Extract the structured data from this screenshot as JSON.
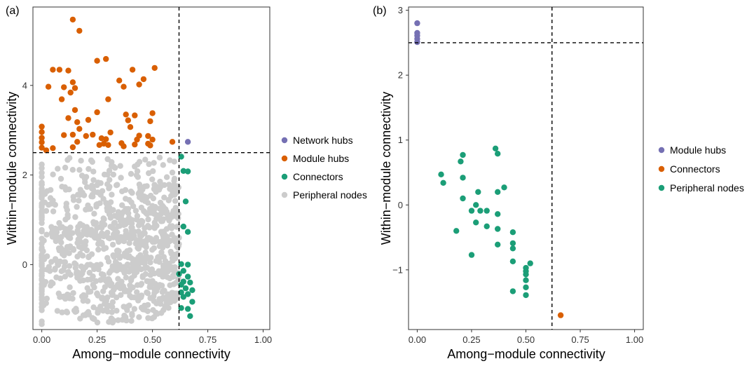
{
  "chart_data": [
    {
      "type": "scatter",
      "panel_label": "(a)",
      "xlabel": "Among−module connectivity",
      "ylabel": "Within−module connectivity",
      "xlim": [
        -0.04,
        1.03
      ],
      "ylim": [
        -1.45,
        5.75
      ],
      "xticks": [
        0,
        0.25,
        0.5,
        0.75,
        1.0
      ],
      "xtick_labels": [
        "0.00",
        "0.25",
        "0.50",
        "0.75",
        "1.00"
      ],
      "yticks": [
        0,
        2,
        4
      ],
      "ytick_labels": [
        "0",
        "2",
        "4"
      ],
      "grid": false,
      "legend_position": "right",
      "thresholds": {
        "x": 0.62,
        "y": 2.5
      },
      "series": [
        {
          "name": "Network hubs",
          "color": "#7570b3",
          "points": [
            [
              0.66,
              2.74
            ]
          ]
        },
        {
          "name": "Module hubs",
          "color": "#d95f02",
          "points": [
            [
              0.14,
              5.47
            ],
            [
              0.17,
              5.22
            ],
            [
              0.25,
              4.55
            ],
            [
              0.29,
              4.59
            ],
            [
              0.05,
              4.35
            ],
            [
              0.08,
              4.35
            ],
            [
              0.12,
              4.33
            ],
            [
              0.51,
              4.39
            ],
            [
              0.35,
              4.11
            ],
            [
              0.41,
              4.35
            ],
            [
              0.46,
              4.14
            ],
            [
              0.03,
              3.97
            ],
            [
              0.1,
              3.96
            ],
            [
              0.14,
              4.07
            ],
            [
              0.09,
              3.69
            ],
            [
              0.13,
              3.84
            ],
            [
              0.15,
              3.94
            ],
            [
              0.3,
              3.69
            ],
            [
              0.37,
              3.97
            ],
            [
              0.44,
              4.02
            ],
            [
              0.15,
              3.45
            ],
            [
              0.25,
              3.4
            ],
            [
              0.38,
              3.35
            ],
            [
              0.42,
              3.33
            ],
            [
              0.5,
              3.38
            ],
            [
              0.12,
              3.27
            ],
            [
              0.16,
              3.18
            ],
            [
              0.21,
              3.23
            ],
            [
              0.39,
              3.22
            ],
            [
              0.49,
              3.2
            ],
            [
              0.4,
              3.07
            ],
            [
              0.17,
              3.03
            ],
            [
              0.1,
              2.89
            ],
            [
              0.14,
              2.9
            ],
            [
              0.2,
              2.87
            ],
            [
              0.23,
              2.9
            ],
            [
              0.27,
              2.82
            ],
            [
              0.29,
              2.8
            ],
            [
              0.31,
              2.95
            ],
            [
              0.44,
              2.88
            ],
            [
              0.48,
              2.87
            ],
            [
              0.0,
              3.08
            ],
            [
              0.0,
              2.96
            ],
            [
              0.0,
              2.83
            ],
            [
              0.0,
              2.73
            ],
            [
              0.0,
              2.61
            ],
            [
              0.02,
              2.55
            ],
            [
              0.05,
              2.6
            ],
            [
              0.14,
              2.62
            ],
            [
              0.16,
              2.74
            ],
            [
              0.26,
              2.67
            ],
            [
              0.28,
              2.7
            ],
            [
              0.3,
              2.67
            ],
            [
              0.36,
              2.71
            ],
            [
              0.37,
              2.64
            ],
            [
              0.42,
              2.68
            ],
            [
              0.43,
              2.79
            ],
            [
              0.48,
              2.7
            ],
            [
              0.49,
              2.66
            ],
            [
              0.5,
              2.79
            ],
            [
              0.59,
              2.74
            ]
          ]
        },
        {
          "name": "Connectors",
          "color": "#1b9e77",
          "points": [
            [
              0.63,
              2.41
            ],
            [
              0.64,
              2.09
            ],
            [
              0.66,
              2.08
            ],
            [
              0.65,
              1.41
            ],
            [
              0.64,
              0.85
            ],
            [
              0.66,
              0.73
            ],
            [
              0.63,
              0.01
            ],
            [
              0.66,
              0.0
            ],
            [
              0.64,
              -0.14
            ],
            [
              0.62,
              -0.21
            ],
            [
              0.66,
              -0.27
            ],
            [
              0.64,
              -0.38
            ],
            [
              0.67,
              -0.4
            ],
            [
              0.63,
              -0.45
            ],
            [
              0.65,
              -0.53
            ],
            [
              0.68,
              -0.57
            ],
            [
              0.63,
              -0.62
            ],
            [
              0.66,
              -0.66
            ],
            [
              0.64,
              -0.72
            ],
            [
              0.68,
              -0.83
            ],
            [
              0.63,
              -0.97
            ],
            [
              0.66,
              -0.99
            ],
            [
              0.67,
              -1.15
            ]
          ]
        },
        {
          "name": "Peripheral nodes",
          "color": "#cccccc",
          "points": []
        }
      ]
    },
    {
      "type": "scatter",
      "panel_label": "(b)",
      "xlabel": "Among−module connectivity",
      "ylabel": "Within−module connectivity",
      "xlim": [
        -0.04,
        1.04
      ],
      "ylim": [
        -1.92,
        3.05
      ],
      "xticks": [
        0,
        0.25,
        0.5,
        0.75,
        1.0
      ],
      "xtick_labels": [
        "0.00",
        "0.25",
        "0.50",
        "0.75",
        "1.00"
      ],
      "yticks": [
        -1,
        0,
        1,
        2,
        3
      ],
      "ytick_labels": [
        "−1",
        "0",
        "1",
        "2",
        "3"
      ],
      "grid": false,
      "legend_position": "right",
      "thresholds": {
        "x": 0.62,
        "y": 2.5
      },
      "series": [
        {
          "name": "Module hubs",
          "color": "#7570b3",
          "points": [
            [
              0.0,
              2.8
            ],
            [
              0.0,
              2.65
            ],
            [
              0.0,
              2.61
            ],
            [
              0.0,
              2.56
            ],
            [
              0.0,
              2.51
            ]
          ]
        },
        {
          "name": "Connectors",
          "color": "#d95f02",
          "points": [
            [
              0.66,
              -1.7
            ]
          ]
        },
        {
          "name": "Peripheral nodes",
          "color": "#1b9e77",
          "points": [
            [
              0.36,
              0.87
            ],
            [
              0.37,
              0.79
            ],
            [
              0.21,
              0.77
            ],
            [
              0.2,
              0.67
            ],
            [
              0.11,
              0.47
            ],
            [
              0.21,
              0.42
            ],
            [
              0.12,
              0.34
            ],
            [
              0.4,
              0.27
            ],
            [
              0.28,
              0.2
            ],
            [
              0.37,
              0.2
            ],
            [
              0.21,
              0.1
            ],
            [
              0.27,
              0.0
            ],
            [
              0.25,
              -0.09
            ],
            [
              0.29,
              -0.09
            ],
            [
              0.32,
              -0.09
            ],
            [
              0.37,
              -0.14
            ],
            [
              0.27,
              -0.27
            ],
            [
              0.32,
              -0.33
            ],
            [
              0.37,
              -0.37
            ],
            [
              0.18,
              -0.4
            ],
            [
              0.44,
              -0.42
            ],
            [
              0.44,
              -0.59
            ],
            [
              0.37,
              -0.61
            ],
            [
              0.44,
              -0.67
            ],
            [
              0.25,
              -0.77
            ],
            [
              0.44,
              -0.87
            ],
            [
              0.52,
              -0.9
            ],
            [
              0.5,
              -0.97
            ],
            [
              0.5,
              -1.02
            ],
            [
              0.5,
              -1.07
            ],
            [
              0.5,
              -1.16
            ],
            [
              0.5,
              -1.27
            ],
            [
              0.44,
              -1.33
            ],
            [
              0.5,
              -1.39
            ]
          ]
        }
      ]
    }
  ]
}
